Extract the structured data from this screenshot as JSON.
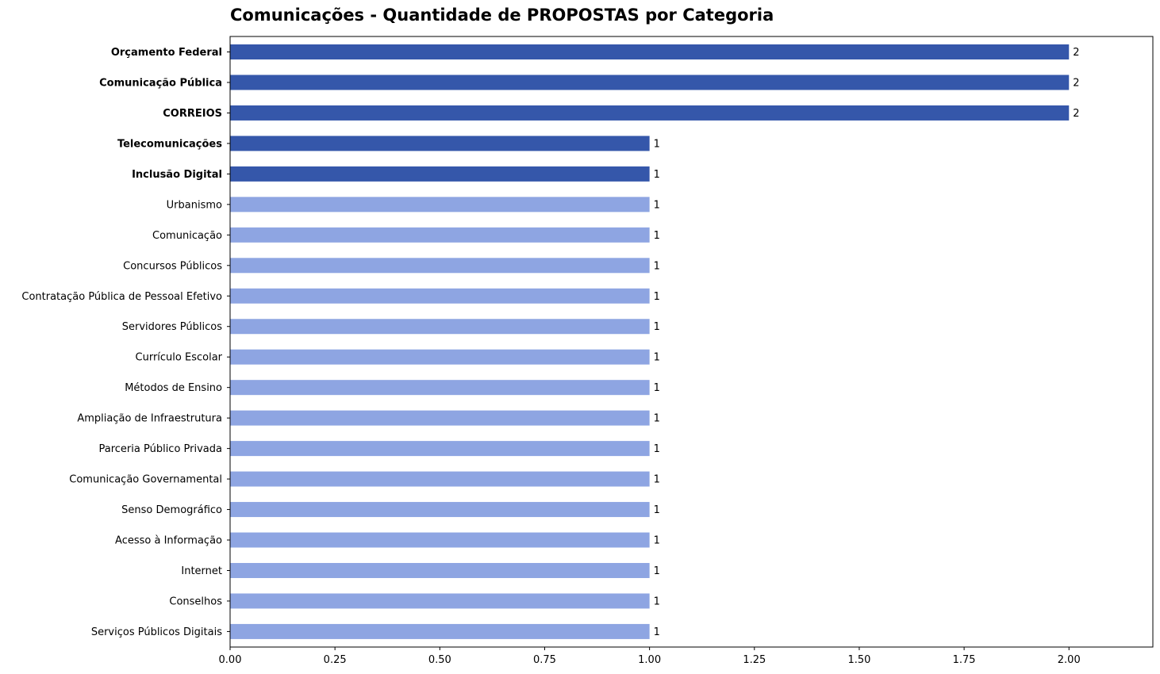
{
  "chart_data": {
    "type": "bar",
    "orientation": "horizontal",
    "title": "Comunicações - Quantidade de PROPOSTAS por Categoria",
    "xlabel": "",
    "ylabel": "",
    "xlim": [
      0,
      2.2
    ],
    "x_ticks": [
      "0.00",
      "0.25",
      "0.50",
      "0.75",
      "1.00",
      "1.25",
      "1.50",
      "1.75",
      "2.00"
    ],
    "x_tick_values": [
      0,
      0.25,
      0.5,
      0.75,
      1.0,
      1.25,
      1.5,
      1.75,
      2.0
    ],
    "grid": false,
    "highlight_color": "#3557aa",
    "normal_color": "#8ea5e2",
    "categories": [
      "Orçamento Federal",
      "Comunicação Pública",
      "CORREIOS",
      "Telecomunicações",
      "Inclusão Digital",
      "Urbanismo",
      "Comunicação",
      "Concursos Públicos",
      "Contratação Pública de Pessoal Efetivo",
      "Servidores Públicos",
      "Currículo Escolar",
      "Métodos de Ensino",
      "Ampliação de Infraestrutura",
      "Parceria Público Privada",
      "Comunicação Governamental",
      "Senso Demográfico",
      "Acesso à Informação",
      "Internet",
      "Conselhos",
      "Serviços Públicos Digitais"
    ],
    "values": [
      2,
      2,
      2,
      1,
      1,
      1,
      1,
      1,
      1,
      1,
      1,
      1,
      1,
      1,
      1,
      1,
      1,
      1,
      1,
      1
    ],
    "value_labels": [
      "2",
      "2",
      "2",
      "1",
      "1",
      "1",
      "1",
      "1",
      "1",
      "1",
      "1",
      "1",
      "1",
      "1",
      "1",
      "1",
      "1",
      "1",
      "1",
      "1"
    ],
    "highlighted": [
      true,
      true,
      true,
      true,
      true,
      false,
      false,
      false,
      false,
      false,
      false,
      false,
      false,
      false,
      false,
      false,
      false,
      false,
      false,
      false
    ]
  }
}
